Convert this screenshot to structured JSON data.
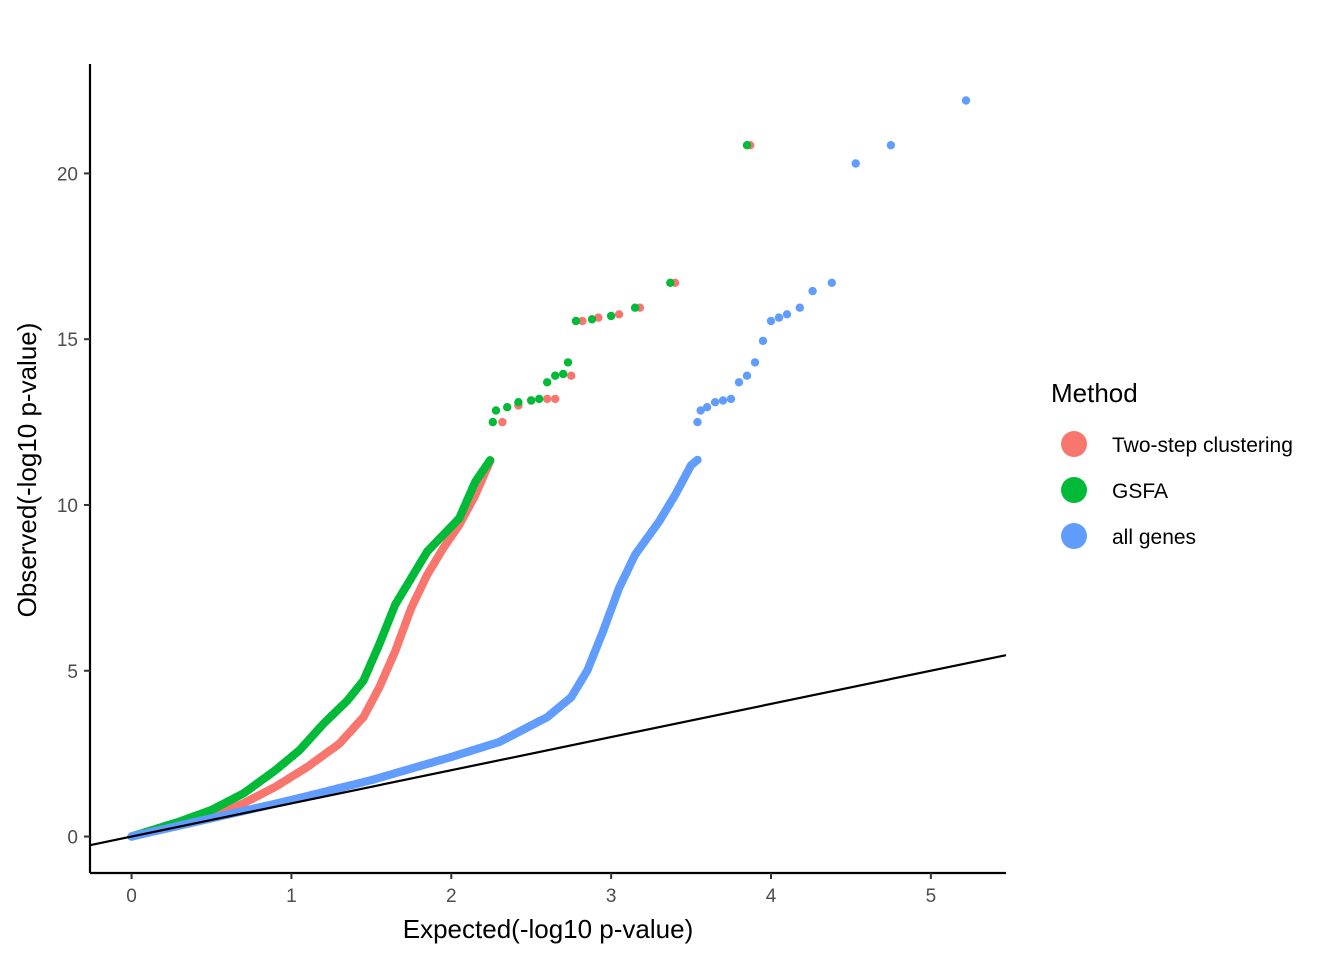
{
  "chart_data": {
    "type": "scatter",
    "xlabel": "Expected(-log10 p-value)",
    "ylabel": "Observed(-log10 p-value)",
    "xlim": [
      -0.26,
      5.47
    ],
    "ylim": [
      -1.1,
      23.3
    ],
    "x_ticks": [
      0,
      1,
      2,
      3,
      4,
      5
    ],
    "x_tick_labels": [
      "0",
      "1",
      "2",
      "3",
      "4",
      "5"
    ],
    "y_ticks": [
      0,
      5,
      10,
      15,
      20
    ],
    "y_tick_labels": [
      "0",
      "5",
      "10",
      "15",
      "20"
    ],
    "grid": false,
    "legend": {
      "title": "Method",
      "position": "right",
      "entries": [
        "Two-step clustering",
        "GSFA",
        "all genes"
      ]
    },
    "reference_line": {
      "intercept": 0,
      "slope": 1,
      "color": "#000000"
    },
    "series": [
      {
        "name": "Two-step clustering",
        "color": "#F8766D",
        "curve": [
          [
            0,
            0
          ],
          [
            0.3,
            0.35
          ],
          [
            0.5,
            0.6
          ],
          [
            0.7,
            1.0
          ],
          [
            0.9,
            1.5
          ],
          [
            1.1,
            2.1
          ],
          [
            1.3,
            2.8
          ],
          [
            1.45,
            3.6
          ],
          [
            1.55,
            4.5
          ],
          [
            1.65,
            5.6
          ],
          [
            1.75,
            6.9
          ],
          [
            1.85,
            7.9
          ],
          [
            1.95,
            8.7
          ],
          [
            2.05,
            9.4
          ],
          [
            2.15,
            10.3
          ],
          [
            2.25,
            11.4
          ]
        ],
        "tail_points": [
          [
            2.32,
            12.5
          ],
          [
            2.42,
            13.0
          ],
          [
            2.5,
            13.15
          ],
          [
            2.6,
            13.2
          ],
          [
            2.65,
            13.2
          ],
          [
            2.75,
            13.9
          ],
          [
            2.82,
            15.55
          ],
          [
            2.92,
            15.65
          ],
          [
            3.05,
            15.75
          ],
          [
            3.18,
            15.95
          ],
          [
            3.4,
            16.7
          ],
          [
            3.87,
            20.85
          ]
        ]
      },
      {
        "name": "GSFA",
        "color": "#00BA38",
        "curve": [
          [
            0,
            0
          ],
          [
            0.3,
            0.45
          ],
          [
            0.5,
            0.8
          ],
          [
            0.7,
            1.3
          ],
          [
            0.9,
            2.0
          ],
          [
            1.05,
            2.6
          ],
          [
            1.2,
            3.4
          ],
          [
            1.35,
            4.1
          ],
          [
            1.45,
            4.7
          ],
          [
            1.55,
            5.8
          ],
          [
            1.65,
            7.0
          ],
          [
            1.75,
            7.8
          ],
          [
            1.85,
            8.6
          ],
          [
            1.95,
            9.1
          ],
          [
            2.05,
            9.6
          ],
          [
            2.15,
            10.7
          ],
          [
            2.25,
            11.4
          ]
        ],
        "tail_points": [
          [
            2.26,
            12.5
          ],
          [
            2.28,
            12.85
          ],
          [
            2.35,
            12.95
          ],
          [
            2.42,
            13.1
          ],
          [
            2.5,
            13.15
          ],
          [
            2.55,
            13.2
          ],
          [
            2.6,
            13.7
          ],
          [
            2.65,
            13.9
          ],
          [
            2.7,
            13.95
          ],
          [
            2.73,
            14.3
          ],
          [
            2.78,
            15.55
          ],
          [
            2.88,
            15.6
          ],
          [
            3.0,
            15.7
          ],
          [
            3.15,
            15.95
          ],
          [
            3.37,
            16.7
          ],
          [
            3.85,
            20.85
          ]
        ]
      },
      {
        "name": "all genes",
        "color": "#619CFF",
        "curve": [
          [
            0,
            0
          ],
          [
            0.5,
            0.55
          ],
          [
            1.0,
            1.1
          ],
          [
            1.5,
            1.7
          ],
          [
            2.0,
            2.4
          ],
          [
            2.3,
            2.85
          ],
          [
            2.6,
            3.6
          ],
          [
            2.75,
            4.2
          ],
          [
            2.85,
            5.0
          ],
          [
            2.95,
            6.2
          ],
          [
            3.05,
            7.5
          ],
          [
            3.15,
            8.5
          ],
          [
            3.3,
            9.5
          ],
          [
            3.4,
            10.3
          ],
          [
            3.5,
            11.2
          ],
          [
            3.55,
            11.4
          ]
        ],
        "tail_points": [
          [
            3.54,
            12.5
          ],
          [
            3.56,
            12.85
          ],
          [
            3.6,
            12.95
          ],
          [
            3.65,
            13.1
          ],
          [
            3.7,
            13.15
          ],
          [
            3.75,
            13.2
          ],
          [
            3.8,
            13.7
          ],
          [
            3.85,
            13.9
          ],
          [
            3.9,
            14.3
          ],
          [
            3.95,
            14.95
          ],
          [
            4.0,
            15.55
          ],
          [
            4.05,
            15.65
          ],
          [
            4.1,
            15.75
          ],
          [
            4.18,
            15.95
          ],
          [
            4.26,
            16.45
          ],
          [
            4.38,
            16.7
          ],
          [
            4.53,
            20.3
          ],
          [
            4.75,
            20.85
          ],
          [
            5.22,
            22.2
          ]
        ]
      }
    ]
  }
}
